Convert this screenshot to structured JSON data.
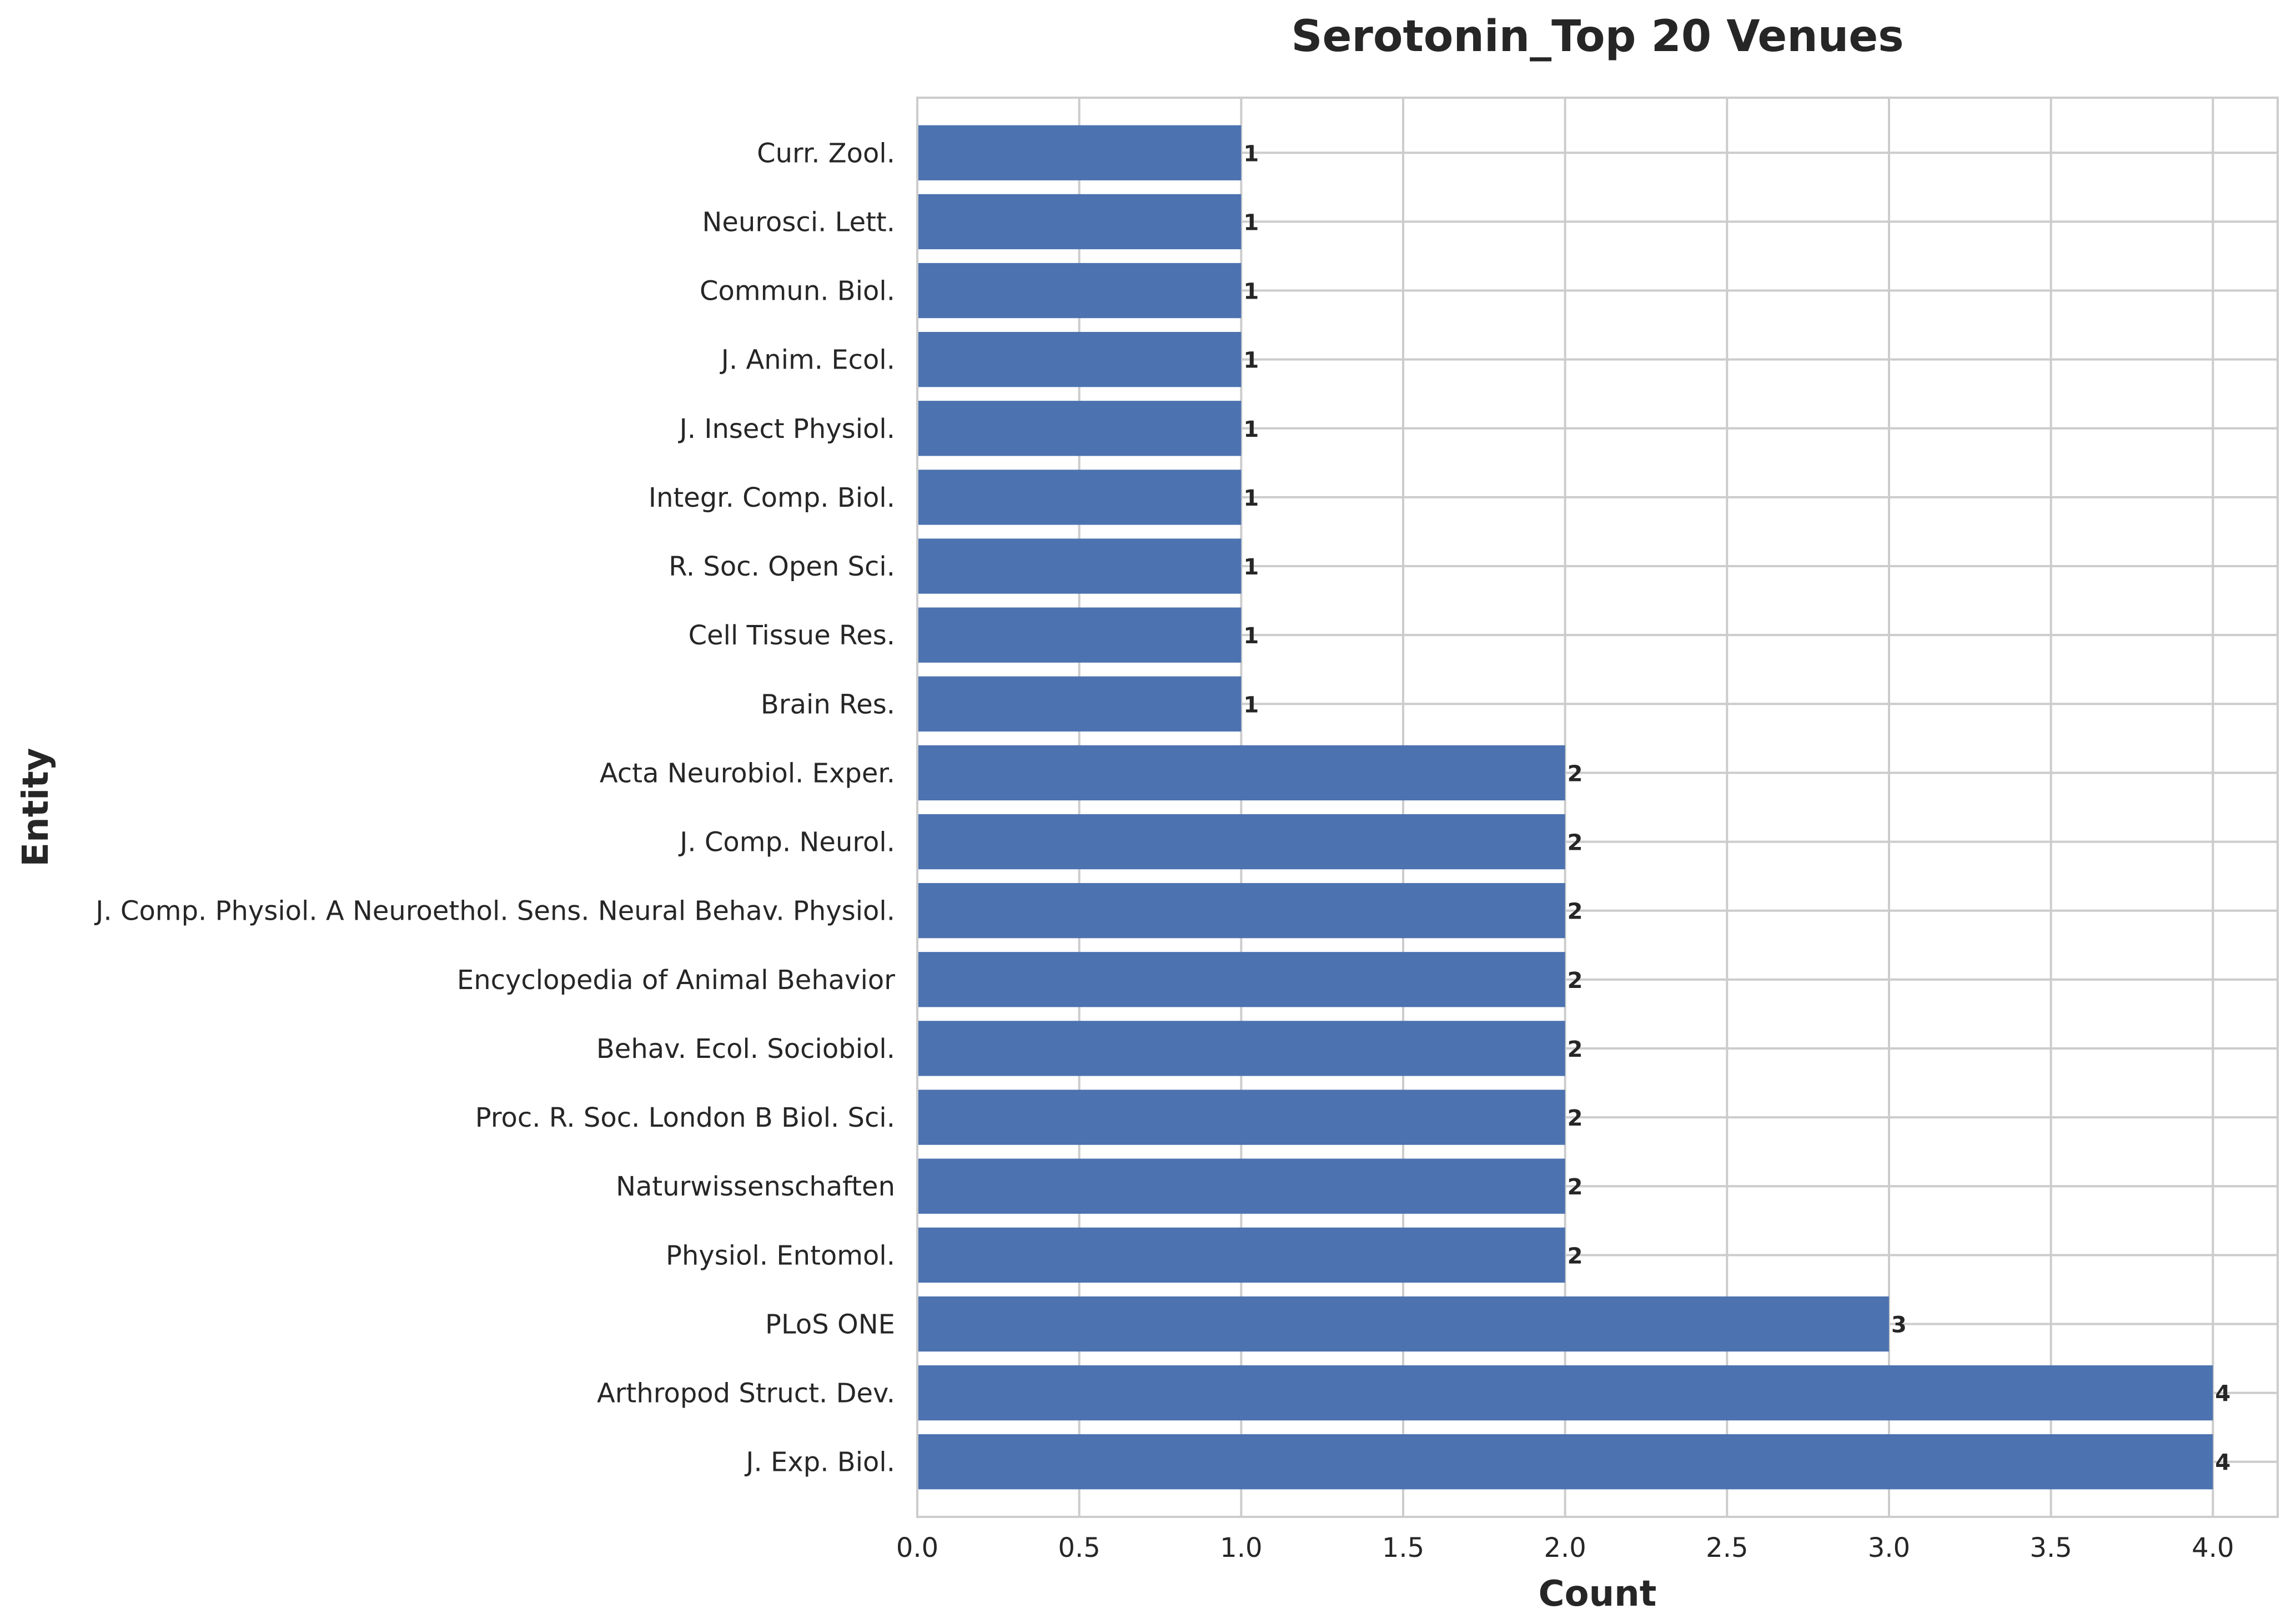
{
  "chart_data": {
    "type": "bar",
    "orientation": "horizontal",
    "title": "Serotonin_Top 20 Venues",
    "xlabel": "Count",
    "ylabel": "Entity",
    "xlim": [
      0,
      4.2
    ],
    "xticks": [
      "0.0",
      "0.5",
      "1.0",
      "1.5",
      "2.0",
      "2.5",
      "3.0",
      "3.5",
      "4.0"
    ],
    "xtick_values": [
      0,
      0.5,
      1,
      1.5,
      2,
      2.5,
      3,
      3.5,
      4
    ],
    "grid": true,
    "bar_color": "#4c72b0",
    "categories": [
      "J. Exp. Biol.",
      "Arthropod Struct. Dev.",
      "PLoS ONE",
      "Physiol. Entomol.",
      "Naturwissenschaften",
      "Proc. R. Soc. London B Biol. Sci.",
      "Behav. Ecol. Sociobiol.",
      "Encyclopedia of Animal Behavior",
      "J. Comp. Physiol. A Neuroethol. Sens. Neural Behav. Physiol.",
      "J. Comp. Neurol.",
      "Acta Neurobiol. Exper.",
      "Brain Res.",
      "Cell Tissue Res.",
      "R. Soc. Open Sci.",
      "Integr. Comp. Biol.",
      "J. Insect Physiol.",
      "J. Anim. Ecol.",
      "Commun. Biol.",
      "Neurosci. Lett.",
      "Curr. Zool."
    ],
    "values": [
      4,
      4,
      3,
      2,
      2,
      2,
      2,
      2,
      2,
      2,
      2,
      1,
      1,
      1,
      1,
      1,
      1,
      1,
      1,
      1
    ],
    "value_labels": [
      "4",
      "4",
      "3",
      "2",
      "2",
      "2",
      "2",
      "2",
      "2",
      "2",
      "2",
      "1",
      "1",
      "1",
      "1",
      "1",
      "1",
      "1",
      "1",
      "1"
    ]
  }
}
